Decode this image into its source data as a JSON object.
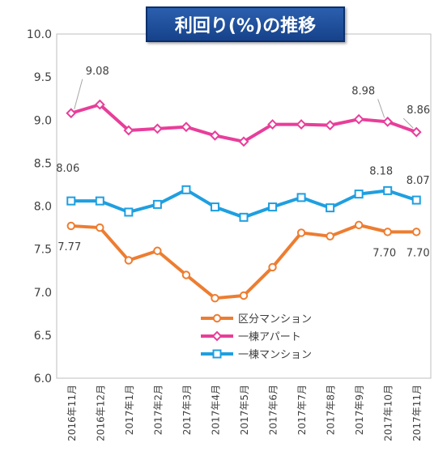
{
  "chart_data": {
    "type": "line",
    "title": "利回り(%)の推移",
    "categories": [
      "2016年11月",
      "2016年12月",
      "2017年1月",
      "2017年2月",
      "2017年3月",
      "2017年4月",
      "2017年5月",
      "2017年6月",
      "2017年7月",
      "2017年8月",
      "2017年9月",
      "2017年10月",
      "2017年11月"
    ],
    "ylim": [
      6.0,
      10.0
    ],
    "yticks": [
      "6.0",
      "6.5",
      "7.0",
      "7.5",
      "8.0",
      "8.5",
      "9.0",
      "9.5",
      "10.0"
    ],
    "grid": false,
    "legend_position": "lower-center",
    "series": [
      {
        "name": "区分マンション",
        "color": "#ed7d31",
        "marker": "circle",
        "values": [
          7.77,
          7.75,
          7.37,
          7.48,
          7.2,
          6.93,
          6.96,
          7.29,
          7.69,
          7.65,
          7.78,
          7.7,
          7.7
        ]
      },
      {
        "name": "一棟アパート",
        "color": "#e83e9a",
        "marker": "diamond",
        "values": [
          9.08,
          9.18,
          8.88,
          8.9,
          8.92,
          8.82,
          8.75,
          8.95,
          8.95,
          8.94,
          9.01,
          8.98,
          8.86
        ]
      },
      {
        "name": "一棟マンション",
        "color": "#1f9fe0",
        "marker": "square",
        "values": [
          8.06,
          8.06,
          7.93,
          8.02,
          8.19,
          7.99,
          7.87,
          7.99,
          8.1,
          7.98,
          8.14,
          8.18,
          8.07
        ]
      }
    ],
    "annotations": [
      {
        "series": 1,
        "index": 0,
        "text": "9.08"
      },
      {
        "series": 1,
        "index": 11,
        "text": "8.98"
      },
      {
        "series": 1,
        "index": 12,
        "text": "8.86"
      },
      {
        "series": 2,
        "index": 0,
        "text": "8.06"
      },
      {
        "series": 2,
        "index": 11,
        "text": "8.18"
      },
      {
        "series": 2,
        "index": 12,
        "text": "8.07"
      },
      {
        "series": 0,
        "index": 0,
        "text": "7.77"
      },
      {
        "series": 0,
        "index": 11,
        "text": "7.70"
      },
      {
        "series": 0,
        "index": 12,
        "text": "7.70"
      }
    ]
  }
}
